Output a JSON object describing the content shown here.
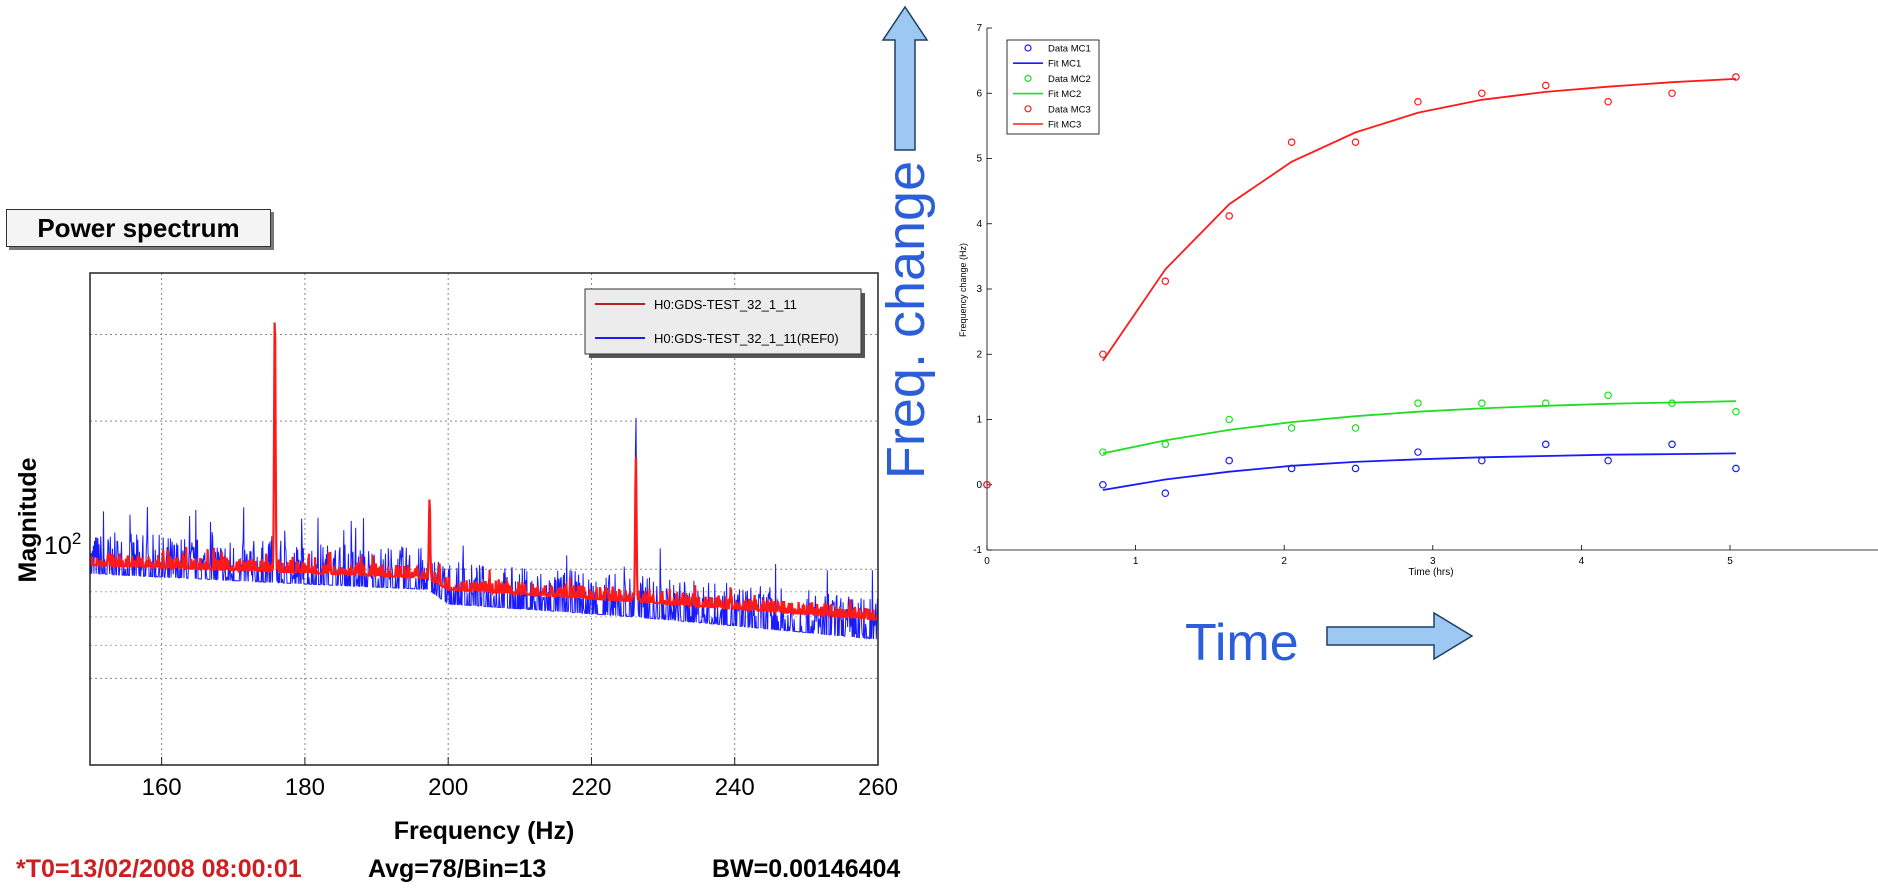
{
  "panel_title": "Power spectrum",
  "footer": {
    "t0": "*T0=13/02/2008 08:00:01",
    "avg": "Avg=78/Bin=13",
    "bw": "BW=0.00146404"
  },
  "annotations": {
    "freq_change": "Freq. change",
    "time": "Time"
  },
  "colors": {
    "red": "#ff1a1a",
    "blue": "#1a1aff",
    "green": "#22dd22",
    "arrow_fill": "#9cc8f2",
    "annotation_text": "#2a5fd9",
    "footer_red": "#cc1f1f"
  },
  "chart_data": [
    {
      "type": "line",
      "title": "",
      "xlabel": "Frequency (Hz)",
      "ylabel": "Magnitude",
      "xlim": [
        150,
        260
      ],
      "x_ticks": [
        160,
        180,
        200,
        220,
        240,
        260
      ],
      "y_scale": "log",
      "y_tick_label_base": "10",
      "y_tick_label_exp": "2",
      "grid": true,
      "legend_placement": "top-right",
      "series": [
        {
          "name": "H0:GDS-TEST_32_1_11",
          "color": "#ff1a1a",
          "baseline": [
            [
              150,
              102
            ],
            [
              175,
              99
            ],
            [
              197,
              96
            ],
            [
              200,
              91
            ],
            [
              226,
              86
            ],
            [
              260,
              79
            ]
          ],
          "peaks": [
            [
              175.8,
              330
            ],
            [
              197.4,
              140
            ],
            [
              226.2,
              170
            ]
          ]
        },
        {
          "name": "H0:GDS-TEST_32_1_11(REF0)",
          "color": "#1a1aff",
          "baseline": [
            [
              150,
              98
            ],
            [
              175,
              94
            ],
            [
              197,
              91
            ],
            [
              200,
              85
            ],
            [
              226,
              80
            ],
            [
              260,
              72
            ]
          ],
          "peaks": [
            [
              175.8,
              250
            ],
            [
              197.4,
              125
            ],
            [
              226.2,
              205
            ]
          ]
        }
      ]
    },
    {
      "type": "scatter",
      "title": "",
      "xlabel": "Time (hrs)",
      "ylabel": "Frequency change (Hz)",
      "xlim": [
        0,
        6
      ],
      "ylim": [
        -1,
        7
      ],
      "x_ticks": [
        0,
        1,
        2,
        3,
        4,
        5
      ],
      "y_ticks": [
        -1,
        0,
        1,
        2,
        3,
        4,
        5,
        6,
        7
      ],
      "legend_placement": "top-left",
      "series": [
        {
          "name": "Data MC1",
          "kind": "points",
          "color": "#1a1aff",
          "x": [
            0,
            0.78,
            1.2,
            1.63,
            2.05,
            2.48,
            2.9,
            3.33,
            3.76,
            4.18,
            4.61,
            5.04
          ],
          "y": [
            0,
            0,
            -0.13,
            0.37,
            0.25,
            0.25,
            0.5,
            0.37,
            0.62,
            0.37,
            0.62,
            0.25
          ]
        },
        {
          "name": "Fit MC1",
          "kind": "line",
          "color": "#1a1aff",
          "x": [
            0.78,
            1.2,
            1.63,
            2.05,
            2.48,
            2.9,
            3.33,
            3.76,
            4.18,
            4.61,
            5.04
          ],
          "y": [
            -0.08,
            0.08,
            0.2,
            0.29,
            0.35,
            0.39,
            0.42,
            0.44,
            0.46,
            0.47,
            0.48
          ]
        },
        {
          "name": "Data MC2",
          "kind": "points",
          "color": "#22dd22",
          "x": [
            0.78,
            1.2,
            1.63,
            2.05,
            2.48,
            2.9,
            3.33,
            3.76,
            4.18,
            4.61,
            5.04
          ],
          "y": [
            0.5,
            0.62,
            1.0,
            0.87,
            0.87,
            1.25,
            1.25,
            1.25,
            1.37,
            1.25,
            1.12
          ]
        },
        {
          "name": "Fit MC2",
          "kind": "line",
          "color": "#22dd22",
          "x": [
            0.78,
            1.2,
            1.63,
            2.05,
            2.48,
            2.9,
            3.33,
            3.76,
            4.18,
            4.61,
            5.04
          ],
          "y": [
            0.48,
            0.68,
            0.84,
            0.96,
            1.05,
            1.12,
            1.17,
            1.21,
            1.24,
            1.26,
            1.28
          ]
        },
        {
          "name": "Data MC3",
          "kind": "points",
          "color": "#ff1a1a",
          "x": [
            0,
            0.78,
            1.2,
            1.63,
            2.05,
            2.48,
            2.9,
            3.33,
            3.76,
            4.18,
            4.61,
            5.04
          ],
          "y": [
            0,
            2.0,
            3.12,
            4.12,
            5.25,
            5.25,
            5.87,
            6.0,
            6.12,
            5.87,
            6.0,
            6.25
          ]
        },
        {
          "name": "Fit MC3",
          "kind": "line",
          "color": "#ff1a1a",
          "x": [
            0.78,
            1.2,
            1.63,
            2.05,
            2.48,
            2.9,
            3.33,
            3.76,
            4.18,
            4.61,
            5.04
          ],
          "y": [
            1.9,
            3.3,
            4.3,
            4.95,
            5.4,
            5.7,
            5.9,
            6.02,
            6.1,
            6.17,
            6.22
          ]
        }
      ]
    }
  ]
}
